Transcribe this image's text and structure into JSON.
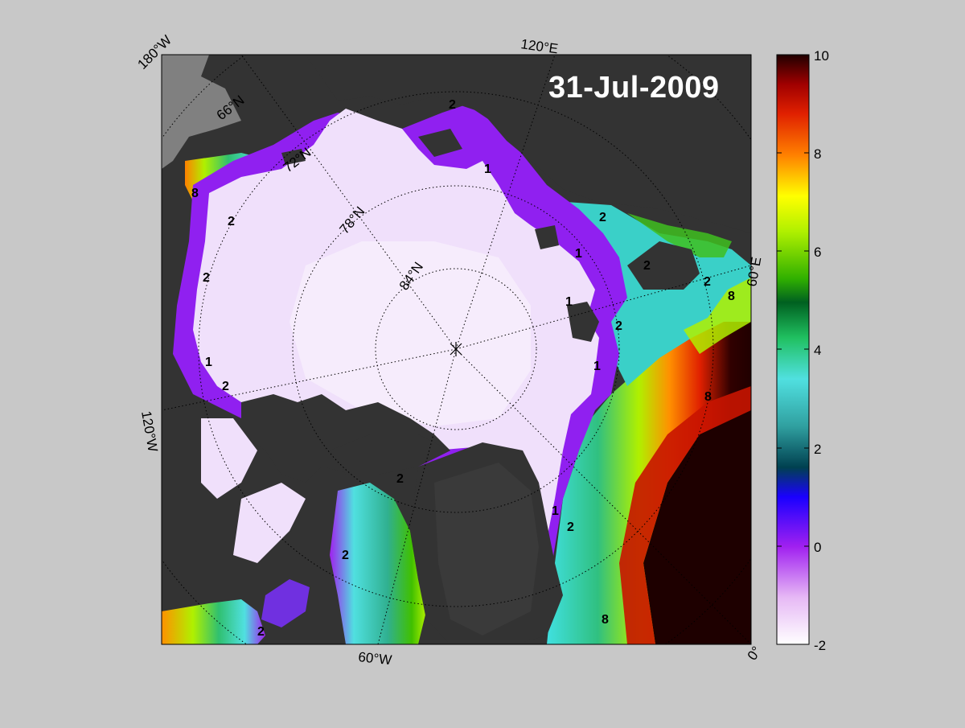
{
  "date": "31-Jul-2009",
  "longitude_labels": {
    "w180": "180°W",
    "e120": "120°E",
    "e60": "60°E",
    "w120": "120°W",
    "w60": "60°W",
    "zero": "0°"
  },
  "latitude_labels": [
    "66°N",
    "72°N",
    "78°N",
    "84°N"
  ],
  "colorbar": {
    "min": -2,
    "max": 10,
    "ticks": [
      "10",
      "8",
      "6",
      "4",
      "2",
      "0",
      "-2"
    ]
  },
  "contour_labels": [
    "2",
    "1",
    "8"
  ],
  "colors": {
    "background": "#c8c8c8",
    "land": "#333333",
    "missing": "#808080",
    "ice": "#f0e0fb"
  }
}
